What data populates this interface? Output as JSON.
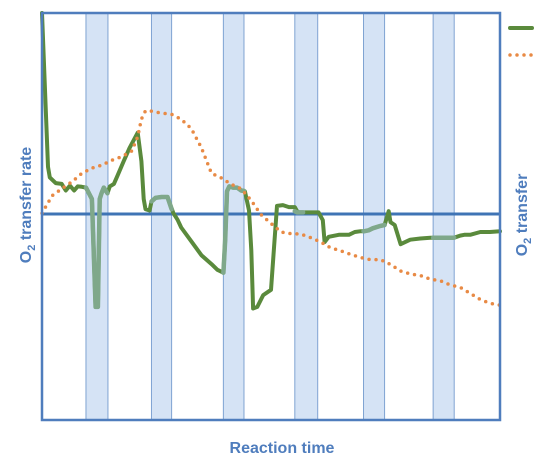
{
  "chart_data": {
    "type": "line",
    "title": "",
    "xlabel": "Reaction time",
    "ylabel_left_prefix": "O",
    "ylabel_left_sub": "2",
    "ylabel_left_suffix": " transfer rate",
    "ylabel_right_prefix": "O",
    "ylabel_right_sub": "2",
    "ylabel_right_suffix": " transfer",
    "xlim": [
      0,
      100
    ],
    "ylim": [
      0,
      100
    ],
    "grid": false,
    "legend_position": "top-right",
    "shaded_bands": [
      [
        9.6,
        14.4
      ],
      [
        23.9,
        28.3
      ],
      [
        39.6,
        44.1
      ],
      [
        55.2,
        60.2
      ],
      [
        70.2,
        74.8
      ],
      [
        85.4,
        90.0
      ]
    ],
    "reference_line": {
      "y": 50.6
    },
    "series": [
      {
        "name": "",
        "style": "solid",
        "color": "#5A8A3C",
        "x": [
          0.0,
          1.3,
          1.7,
          3.0,
          4.3,
          5.2,
          6.1,
          7.0,
          7.8,
          8.7,
          9.6,
          10.9,
          11.7,
          12.2,
          12.6,
          13.0,
          13.5,
          14.3,
          14.8,
          15.7,
          16.5,
          17.8,
          19.1,
          20.9,
          21.7,
          22.2,
          22.6,
          23.5,
          23.9,
          24.8,
          26.1,
          27.4,
          28.7,
          29.6,
          30.4,
          32.6,
          34.8,
          37.0,
          38.3,
          39.6,
          40.0,
          40.4,
          40.9,
          41.7,
          42.6,
          43.5,
          44.3,
          45.2,
          45.7,
          46.1,
          47.0,
          48.3,
          50.0,
          51.3,
          52.6,
          53.9,
          55.2,
          55.7,
          56.1,
          57.0,
          60.4,
          61.3,
          61.7,
          62.6,
          64.8,
          67.0,
          68.3,
          69.6,
          70.4,
          71.3,
          72.2,
          73.9,
          74.8,
          75.7,
          76.1,
          77.0,
          78.3,
          80.4,
          82.6,
          84.8,
          85.2,
          85.7,
          86.5,
          89.1,
          90.0,
          91.3,
          92.2,
          93.5,
          95.7,
          97.8,
          100.0
        ],
        "y": [
          100.0,
          62.2,
          59.6,
          58.2,
          58.0,
          56.4,
          57.6,
          56.4,
          57.4,
          57.3,
          57.1,
          54.3,
          27.8,
          27.8,
          54.3,
          55.7,
          57.1,
          55.7,
          57.4,
          58.0,
          60.1,
          63.5,
          66.8,
          70.6,
          63.6,
          54.3,
          51.8,
          51.5,
          53.7,
          54.6,
          54.8,
          54.8,
          50.8,
          49.2,
          47.3,
          43.9,
          40.5,
          38.3,
          36.9,
          36.2,
          44.3,
          56.2,
          57.4,
          57.1,
          57.1,
          56.4,
          56.2,
          51.5,
          41.7,
          27.4,
          27.8,
          30.7,
          32.0,
          52.6,
          52.8,
          52.3,
          52.3,
          51.3,
          51.0,
          51.0,
          51.0,
          49.1,
          43.7,
          45.0,
          45.5,
          45.5,
          46.2,
          46.4,
          46.4,
          46.6,
          47.1,
          47.7,
          47.9,
          51.3,
          48.6,
          47.9,
          43.2,
          44.3,
          44.6,
          44.8,
          44.8,
          44.8,
          44.8,
          44.8,
          44.8,
          45.3,
          45.5,
          45.5,
          46.2,
          46.2,
          46.4
        ]
      },
      {
        "name": "",
        "style": "overlay",
        "color": "#7FA88A",
        "x": [
          9.6,
          10.9,
          11.7,
          12.2,
          12.6,
          13.0,
          13.5,
          14.3,
          23.9,
          24.8,
          26.1,
          27.4,
          28.3,
          39.6,
          40.0,
          40.4,
          40.9,
          41.7,
          42.6,
          43.5,
          44.1,
          55.2,
          55.7,
          56.1,
          57.0,
          60.2,
          70.2,
          70.4,
          71.3,
          72.2,
          73.9,
          74.8,
          85.4,
          85.7,
          86.5,
          89.1,
          90.0
        ],
        "y": [
          57.1,
          54.3,
          27.8,
          27.8,
          54.3,
          55.7,
          57.1,
          55.7,
          53.7,
          54.6,
          54.8,
          54.8,
          51.8,
          36.2,
          44.3,
          56.2,
          57.4,
          57.1,
          57.1,
          56.4,
          56.3,
          51.3,
          51.0,
          51.0,
          51.0,
          51.0,
          46.4,
          46.4,
          46.6,
          47.1,
          47.7,
          47.9,
          44.8,
          44.8,
          44.8,
          44.8,
          44.8
        ]
      },
      {
        "name": "",
        "style": "dotted",
        "color": "#E88A45",
        "x": [
          0.0,
          2.2,
          4.3,
          6.5,
          8.7,
          10.9,
          13.0,
          15.2,
          17.4,
          19.6,
          20.9,
          21.7,
          22.6,
          23.9,
          26.1,
          28.3,
          30.4,
          32.6,
          34.8,
          37.0,
          39.1,
          41.3,
          43.5,
          45.7,
          47.8,
          50.0,
          52.2,
          54.3,
          56.5,
          58.7,
          60.9,
          63.0,
          65.2,
          67.4,
          69.6,
          71.7,
          73.9,
          76.1,
          78.3,
          80.4,
          82.6,
          84.8,
          87.0,
          89.1,
          91.3,
          93.5,
          95.7,
          97.8,
          100.0
        ],
        "y": [
          50.8,
          55.1,
          56.8,
          58.5,
          60.6,
          61.9,
          62.6,
          63.8,
          64.7,
          66.1,
          69.6,
          73.9,
          76.0,
          75.9,
          75.4,
          75.1,
          73.9,
          71.6,
          66.9,
          60.6,
          59.5,
          57.9,
          56.8,
          53.9,
          50.5,
          48.3,
          46.2,
          45.8,
          45.7,
          44.8,
          43.7,
          42.3,
          41.6,
          40.7,
          39.9,
          39.4,
          39.4,
          38.2,
          36.6,
          35.9,
          35.5,
          34.6,
          34.2,
          33.2,
          32.6,
          31.1,
          29.6,
          28.7,
          28.2
        ]
      }
    ]
  }
}
